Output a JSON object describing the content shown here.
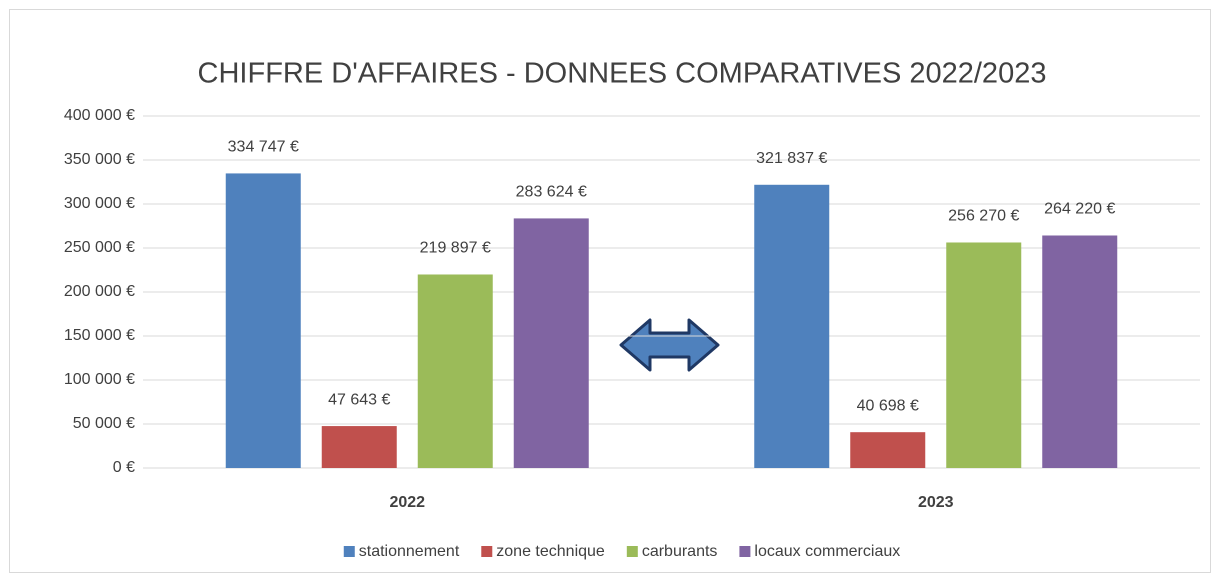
{
  "chart_data": {
    "type": "bar",
    "title": "CHIFFRE D'AFFAIRES - DONNEES COMPARATIVES 2022/2023",
    "categories": [
      "2022",
      "2023"
    ],
    "series": [
      {
        "name": "stationnement",
        "color": "#4f81bd",
        "values": [
          334747,
          321837
        ],
        "value_labels": [
          "334 747 €",
          "321 837 €"
        ]
      },
      {
        "name": "zone technique",
        "color": "#c0504d",
        "values": [
          47643,
          40698
        ],
        "value_labels": [
          "47 643 €",
          "40 698 €"
        ]
      },
      {
        "name": "carburants",
        "color": "#9bbb59",
        "values": [
          219897,
          256270
        ],
        "value_labels": [
          "219 897 €",
          "256 270 €"
        ]
      },
      {
        "name": "locaux commerciaux",
        "color": "#8064a2",
        "values": [
          283624,
          264220
        ],
        "value_labels": [
          "283 624 €",
          "264 220 €"
        ]
      }
    ],
    "ylim": [
      0,
      400000
    ],
    "yticks": [
      {
        "value": 0,
        "label": "0 €"
      },
      {
        "value": 50000,
        "label": "50 000 €"
      },
      {
        "value": 100000,
        "label": "100 000 €"
      },
      {
        "value": 150000,
        "label": "150 000 €"
      },
      {
        "value": 200000,
        "label": "200 000 €"
      },
      {
        "value": 250000,
        "label": "250 000 €"
      },
      {
        "value": 300000,
        "label": "300 000 €"
      },
      {
        "value": 350000,
        "label": "350 000 €"
      },
      {
        "value": 400000,
        "label": "400 000 €"
      }
    ],
    "grid": true,
    "legend": "bottom"
  }
}
